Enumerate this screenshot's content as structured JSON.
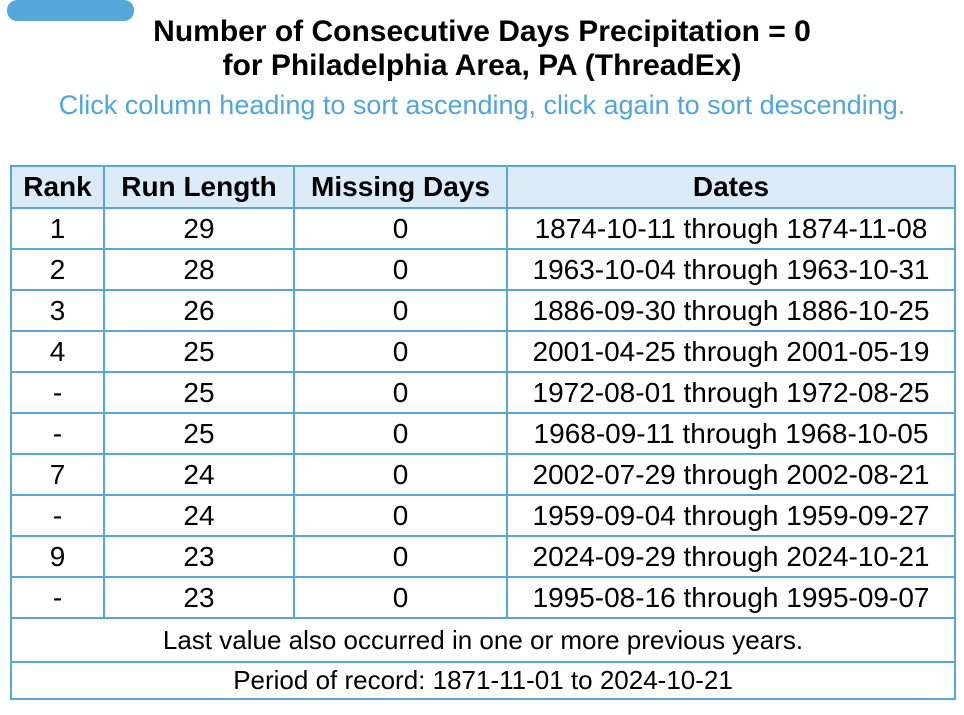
{
  "page": {
    "title_line1": "Number of Consecutive Days Precipitation = 0",
    "title_line2": "for Philadelphia Area, PA (ThreadEx)",
    "sort_hint": "Click column heading to sort ascending, click again to sort descending."
  },
  "table": {
    "headers": [
      "Rank",
      "Run Length",
      "Missing Days",
      "Dates"
    ],
    "rows": [
      [
        "1",
        "29",
        "0",
        "1874-10-11 through 1874-11-08"
      ],
      [
        "2",
        "28",
        "0",
        "1963-10-04 through 1963-10-31"
      ],
      [
        "3",
        "26",
        "0",
        "1886-09-30 through 1886-10-25"
      ],
      [
        "4",
        "25",
        "0",
        "2001-04-25 through 2001-05-19"
      ],
      [
        "-",
        "25",
        "0",
        "1972-08-01 through 1972-08-25"
      ],
      [
        "-",
        "25",
        "0",
        "1968-09-11 through 1968-10-05"
      ],
      [
        "7",
        "24",
        "0",
        "2002-07-29 through 2002-08-21"
      ],
      [
        "-",
        "24",
        "0",
        "1959-09-04 through 1959-09-27"
      ],
      [
        "9",
        "23",
        "0",
        "2024-09-29 through 2024-10-21"
      ],
      [
        "-",
        "23",
        "0",
        "1995-08-16 through 1995-09-07"
      ]
    ],
    "footnote": "Last value also occurred in one or more previous years.",
    "period_of_record": "Period of record: 1871-11-01 to 2024-10-21"
  },
  "colors": {
    "border_blue": "#55a8db",
    "header_background": "#dcebf8",
    "hint_blue": "#4fa5de",
    "text_black": "#000000"
  }
}
